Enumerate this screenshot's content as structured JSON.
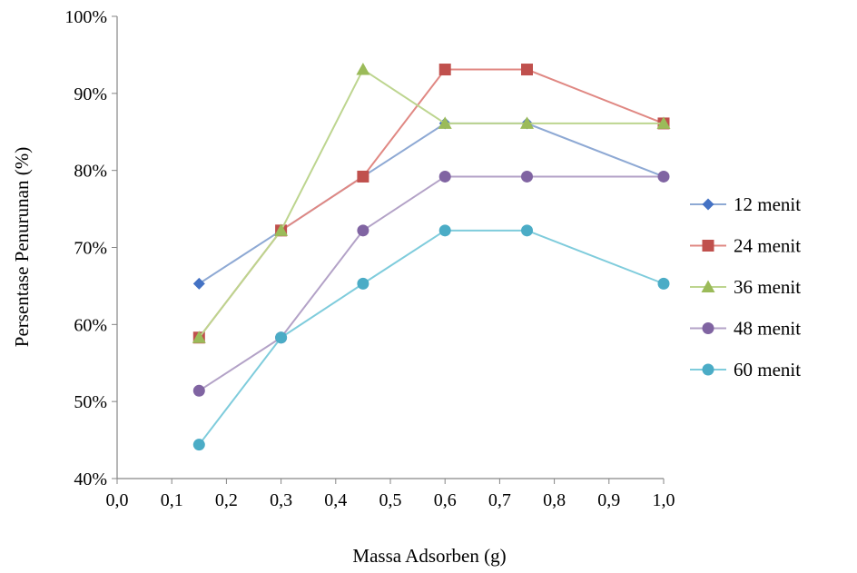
{
  "chart_data": {
    "type": "line",
    "title": "",
    "xlabel": "Massa Adsorben (g)",
    "ylabel": "Persentase Penurunan (%)",
    "xlim": [
      0.0,
      1.0
    ],
    "ylim": [
      40,
      100
    ],
    "x_ticks": [
      "0,0",
      "0,1",
      "0,2",
      "0,3",
      "0,4",
      "0,5",
      "0,6",
      "0,7",
      "0,8",
      "0,9",
      "1,0"
    ],
    "y_ticks": [
      "40%",
      "50%",
      "60%",
      "70%",
      "80%",
      "90%",
      "100%"
    ],
    "x": [
      0.15,
      0.3,
      0.45,
      0.6,
      0.75,
      1.0
    ],
    "grid": false,
    "legend_position": "right",
    "series": [
      {
        "name": "12 menit",
        "marker": "diamond",
        "line_color": "#8EA9D4",
        "marker_color": "#4472C4",
        "values": [
          65.3,
          72.2,
          79.2,
          86.1,
          86.1,
          79.2
        ]
      },
      {
        "name": "24 menit",
        "marker": "square",
        "line_color": "#E08883",
        "marker_color": "#C0504D",
        "values": [
          58.3,
          72.2,
          79.2,
          93.1,
          93.1,
          86.1
        ]
      },
      {
        "name": "36 menit",
        "marker": "triangle",
        "line_color": "#BDD58F",
        "marker_color": "#9BBB59",
        "values": [
          58.3,
          72.2,
          93.1,
          86.1,
          86.1,
          86.1
        ]
      },
      {
        "name": "48 menit",
        "marker": "circle",
        "line_color": "#B3A2C7",
        "marker_color": "#8064A2",
        "values": [
          51.4,
          58.3,
          72.2,
          79.2,
          79.2,
          79.2
        ]
      },
      {
        "name": "60 menit",
        "marker": "circle",
        "line_color": "#7FCCDC",
        "marker_color": "#4BACC6",
        "values": [
          44.4,
          58.3,
          65.3,
          72.2,
          72.2,
          65.3
        ]
      }
    ]
  }
}
